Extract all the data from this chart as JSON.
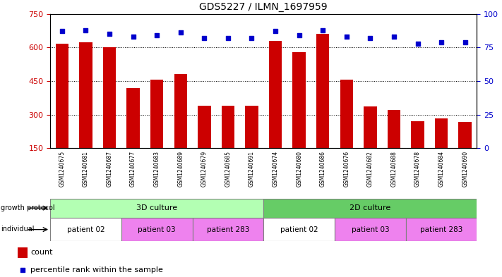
{
  "title": "GDS5227 / ILMN_1697959",
  "samples": [
    "GSM1240675",
    "GSM1240681",
    "GSM1240687",
    "GSM1240677",
    "GSM1240683",
    "GSM1240689",
    "GSM1240679",
    "GSM1240685",
    "GSM1240691",
    "GSM1240674",
    "GSM1240680",
    "GSM1240686",
    "GSM1240676",
    "GSM1240682",
    "GSM1240688",
    "GSM1240678",
    "GSM1240684",
    "GSM1240690"
  ],
  "counts": [
    618,
    622,
    602,
    418,
    455,
    480,
    340,
    340,
    340,
    628,
    578,
    660,
    455,
    335,
    320,
    270,
    282,
    268
  ],
  "percentiles": [
    87,
    88,
    85,
    83,
    84,
    86,
    82,
    82,
    82,
    87,
    84,
    88,
    83,
    82,
    83,
    78,
    79,
    79
  ],
  "bar_color": "#cc0000",
  "dot_color": "#0000cc",
  "ylim_left": [
    150,
    750
  ],
  "yticks_left": [
    150,
    300,
    450,
    600,
    750
  ],
  "grid_lines": [
    300,
    450,
    600
  ],
  "ylim_right": [
    0,
    100
  ],
  "yticks_right": [
    0,
    25,
    50,
    75,
    100
  ],
  "growth_color_3D": "#b3ffb3",
  "growth_color_2D": "#66cc66",
  "individual_color_white": "#ffffff",
  "individual_color_pink": "#ee82ee",
  "xtick_bg_color": "#cccccc",
  "plot_bg_color": "#ffffff",
  "individual_groups": [
    {
      "label": "patient 02",
      "start": 0,
      "end": 2,
      "color": "#ffffff"
    },
    {
      "label": "patient 03",
      "start": 3,
      "end": 5,
      "color": "#ee82ee"
    },
    {
      "label": "patient 283",
      "start": 6,
      "end": 8,
      "color": "#ee82ee"
    },
    {
      "label": "patient 02",
      "start": 9,
      "end": 11,
      "color": "#ffffff"
    },
    {
      "label": "patient 03",
      "start": 12,
      "end": 14,
      "color": "#ee82ee"
    },
    {
      "label": "patient 283",
      "start": 15,
      "end": 17,
      "color": "#ee82ee"
    }
  ]
}
